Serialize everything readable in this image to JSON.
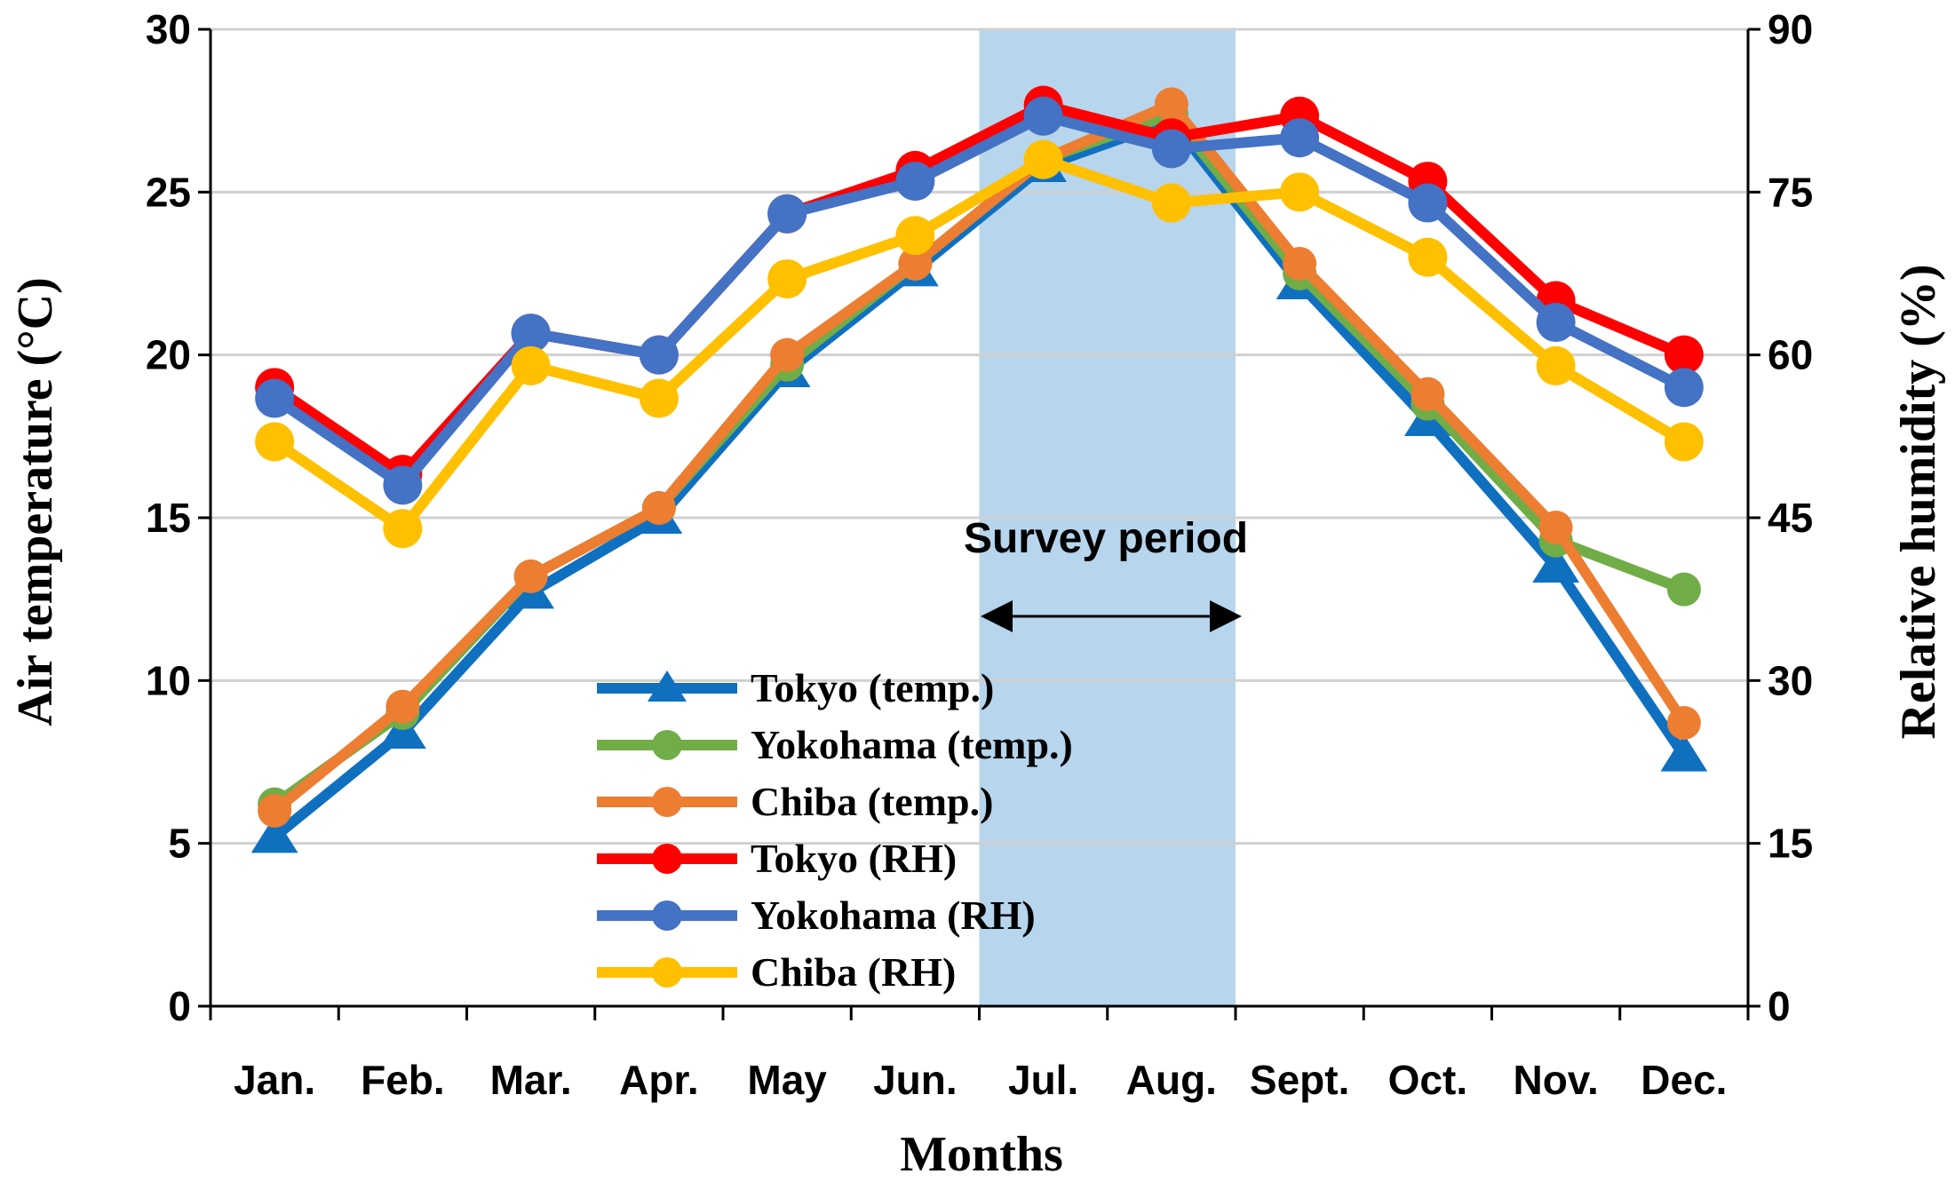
{
  "chart_data": {
    "type": "line",
    "categories": [
      "Jan.",
      "Feb.",
      "Mar.",
      "Apr.",
      "May",
      "Jun.",
      "Jul.",
      "Aug.",
      "Sept.",
      "Oct.",
      "Nov.",
      "Dec."
    ],
    "xlabel": "Months",
    "ylabel": "Air temperature (°C)",
    "y2label": "Relative humidity  (%)",
    "ylim": [
      0,
      30
    ],
    "y2lim": [
      0,
      90
    ],
    "yticks": [
      "0",
      "5",
      "10",
      "15",
      "20",
      "25",
      "30"
    ],
    "y2ticks": [
      "0",
      "15",
      "30",
      "45",
      "60",
      "75",
      "90"
    ],
    "grid": true,
    "legend_position": "center-bottom",
    "shaded_region": {
      "from_category": "Jul.",
      "to_category": "Aug.",
      "color": "#9fc7e6"
    },
    "annotation": {
      "text": "Survey period",
      "arrow": "double-headed"
    },
    "series": [
      {
        "name": "Tokyo (temp.)",
        "axis": "left",
        "color": "#0f70c0",
        "marker": "triangle",
        "values": [
          5.2,
          8.4,
          12.7,
          15.0,
          19.5,
          22.6,
          25.8,
          27.2,
          22.2,
          18.0,
          13.5,
          7.7
        ]
      },
      {
        "name": "Yokohama (temp.)",
        "axis": "left",
        "color": "#70ad47",
        "marker": "circle",
        "values": [
          6.2,
          9.0,
          13.2,
          15.3,
          19.7,
          22.8,
          26.0,
          27.4,
          22.5,
          18.5,
          14.3,
          12.8
        ]
      },
      {
        "name": "Chiba (temp.)",
        "axis": "left",
        "color": "#ed7d31",
        "marker": "circle",
        "values": [
          6.0,
          9.2,
          13.2,
          15.3,
          20.0,
          22.8,
          26.0,
          27.7,
          22.8,
          18.8,
          14.7,
          8.7
        ]
      },
      {
        "name": "Tokyo (RH)",
        "axis": "right",
        "color": "#ff0000",
        "marker": "circle",
        "values": [
          57,
          49,
          62,
          60,
          73,
          77,
          83,
          80,
          82,
          76,
          65,
          60
        ]
      },
      {
        "name": "Yokohama (RH)",
        "axis": "right",
        "color": "#4472c4",
        "marker": "circle",
        "values": [
          56,
          48,
          62,
          60,
          73,
          76,
          82,
          79,
          80,
          74,
          63,
          57
        ]
      },
      {
        "name": "Chiba (RH)",
        "axis": "right",
        "color": "#ffc000",
        "marker": "circle",
        "values": [
          52,
          44,
          59,
          56,
          67,
          71,
          78,
          74,
          75,
          69,
          59,
          52
        ]
      }
    ]
  }
}
